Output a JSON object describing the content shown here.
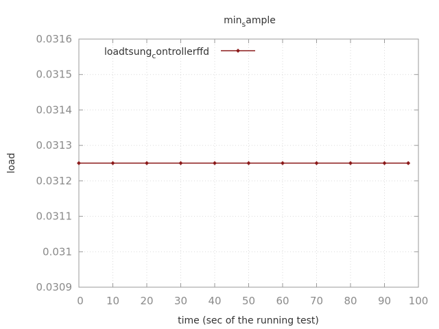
{
  "chart_data": {
    "type": "line",
    "title": {
      "base": "min",
      "sub": "s",
      "rest": "ample"
    },
    "xlabel": "time (sec of the running test)",
    "ylabel": "load",
    "xlim": [
      0,
      100
    ],
    "ylim": [
      0.0309,
      0.0316
    ],
    "x_ticks": [
      "0",
      "10",
      "20",
      "30",
      "40",
      "50",
      "60",
      "70",
      "80",
      "90",
      "100"
    ],
    "y_ticks": [
      "0.0309",
      "0.031",
      "0.0311",
      "0.0312",
      "0.0313",
      "0.0314",
      "0.0315",
      "0.0316"
    ],
    "grid": true,
    "legend_position": "top-left",
    "series": [
      {
        "name": "loadtsung_controller_fd",
        "legend": {
          "a": "loadtsung",
          "sub": "c",
          "b": "ontrollerf",
          "c": "fd"
        },
        "color": "#8b1a1a",
        "x": [
          0,
          10,
          20,
          30,
          40,
          50,
          60,
          70,
          80,
          90,
          97
        ],
        "y": [
          0.03125,
          0.03125,
          0.03125,
          0.03125,
          0.03125,
          0.03125,
          0.03125,
          0.03125,
          0.03125,
          0.03125,
          0.03125
        ]
      }
    ]
  }
}
